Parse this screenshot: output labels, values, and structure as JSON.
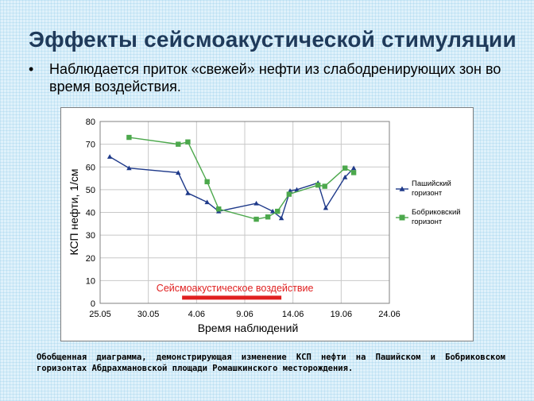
{
  "slide": {
    "title": "Эффекты сейсмоакустической стимуляции",
    "bullet": "Наблюдается приток «свежей» нефти из слабодренирующих зон во время воздействия.",
    "caption": "Обобщенная диаграмма, демонстрирующая изменение КСП нефти на Пашийском и Бобриковском горизонтах Абдрахмановской площади Ромашкинского месторождения."
  },
  "chart_data": {
    "type": "line",
    "title": "",
    "xlabel": "Время наблюдений",
    "ylabel": "КСП нефти, 1/см",
    "x_unit": "days after 25.05",
    "xlim": [
      0,
      30
    ],
    "ylim": [
      0,
      80
    ],
    "x_ticks": [
      {
        "x": 0,
        "label": "25.05"
      },
      {
        "x": 5,
        "label": "30.05"
      },
      {
        "x": 10,
        "label": "4.06"
      },
      {
        "x": 15,
        "label": "9.06"
      },
      {
        "x": 20,
        "label": "14.06"
      },
      {
        "x": 25,
        "label": "19.06"
      },
      {
        "x": 30,
        "label": "24.06"
      }
    ],
    "y_ticks": [
      0,
      10,
      20,
      30,
      40,
      50,
      60,
      70,
      80
    ],
    "grid": "vertical and horizontal",
    "legend": "right",
    "series": [
      {
        "name": "Пашийский горизонт",
        "color": "#1f3a8a",
        "marker": "triangle",
        "x": [
          1.0,
          3.0,
          8.1,
          9.1,
          11.1,
          12.3,
          16.2,
          17.9,
          18.8,
          19.7,
          20.4,
          22.6,
          23.4,
          25.4,
          26.3
        ],
        "y": [
          64.5,
          59.5,
          57.5,
          48.5,
          44.5,
          40.5,
          44,
          40.5,
          37.5,
          49.5,
          50,
          53,
          42,
          55.5,
          59.5
        ]
      },
      {
        "name": "Бобриковский горизонт",
        "color": "#4ca84c",
        "marker": "square",
        "x": [
          3.0,
          8.1,
          9.1,
          11.1,
          12.3,
          16.2,
          17.4,
          18.4,
          19.6,
          22.6,
          23.3,
          25.4,
          26.3
        ],
        "y": [
          73,
          70,
          71,
          53.5,
          41.5,
          37,
          38,
          40.5,
          48,
          52,
          51.5,
          59.5,
          57.5
        ]
      }
    ],
    "annotation": {
      "text": "Сейсмоакустическое воздействие",
      "color": "#e02020",
      "x_start": 8.5,
      "x_end": 18.8,
      "y": 2.5
    }
  }
}
